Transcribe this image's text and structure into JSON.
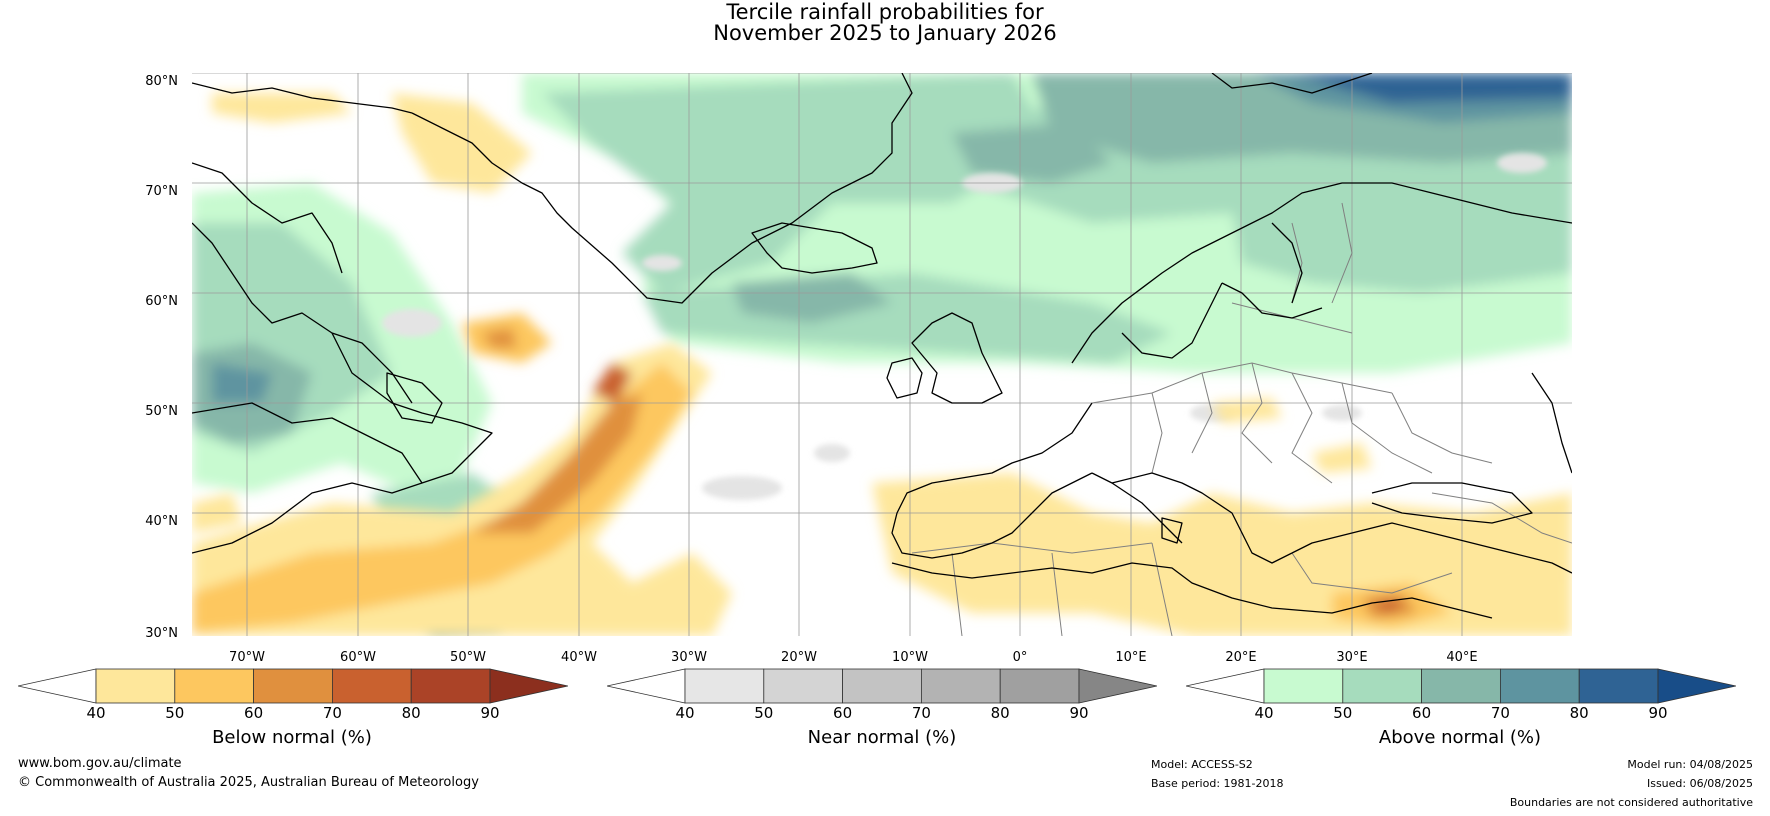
{
  "title": {
    "line1": "Tercile rainfall probabilities for",
    "line2": "November 2025 to January 2026"
  },
  "map": {
    "lat_labels": [
      "80°N",
      "70°N",
      "60°N",
      "50°N",
      "40°N",
      "30°N"
    ],
    "lon_labels": [
      "70°W",
      "60°W",
      "50°W",
      "40°W",
      "30°W",
      "20°W",
      "10°W",
      "0°",
      "10°E",
      "20°E",
      "30°E",
      "40°E"
    ]
  },
  "colorbars": [
    {
      "label": "Below normal (%)",
      "ticks": [
        "40",
        "50",
        "60",
        "70",
        "80",
        "90"
      ],
      "colors": [
        "#ffffff",
        "#fee79b",
        "#fdc75f",
        "#e0903e",
        "#c9612f",
        "#ab4327",
        "#8c2f1e"
      ]
    },
    {
      "label": "Near normal (%)",
      "ticks": [
        "40",
        "50",
        "60",
        "70",
        "80",
        "90"
      ],
      "colors": [
        "#ffffff",
        "#e6e6e6",
        "#d4d4d4",
        "#c3c3c3",
        "#b3b3b3",
        "#a0a0a0",
        "#868686"
      ]
    },
    {
      "label": "Above normal (%)",
      "ticks": [
        "40",
        "50",
        "60",
        "70",
        "80",
        "90"
      ],
      "colors": [
        "#ffffff",
        "#c8fad0",
        "#a6dcbd",
        "#86b7a9",
        "#5e94a0",
        "#2f6394",
        "#184d88"
      ]
    }
  ],
  "footer": {
    "website": "www.bom.gov.au/climate",
    "copyright": "© Commonwealth of Australia 2025, Australian Bureau of Meteorology",
    "model": "Model: ACCESS-S2",
    "base_period": "Base period: 1981-2018",
    "model_run": "Model run: 04/08/2025",
    "issued": "Issued: 06/08/2025",
    "disclaimer": "Boundaries are not considered authoritative"
  }
}
